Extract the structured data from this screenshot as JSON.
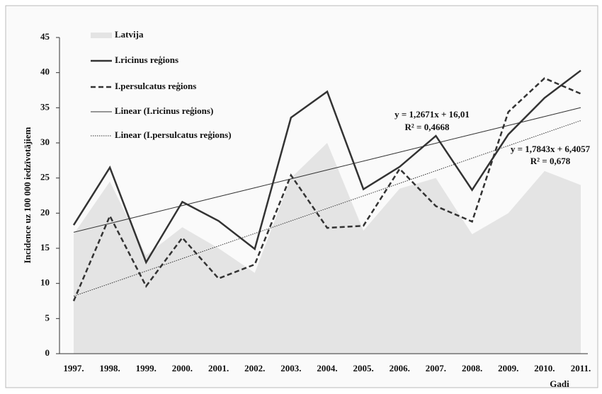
{
  "chart_data": {
    "type": "line",
    "y_label": "Incidence uz 100 000 iedzīvotājiem",
    "x_label": "Gadi",
    "categories": [
      "1997.",
      "1998.",
      "1999.",
      "2000.",
      "2001.",
      "2002.",
      "2003.",
      "2004.",
      "2005.",
      "2006.",
      "2007.",
      "2008.",
      "2009.",
      "2010.",
      "2011."
    ],
    "series": [
      {
        "name": "Latvija",
        "color": "#e4e4e4",
        "style": "area",
        "values": [
          17,
          24.5,
          14,
          18,
          15,
          11.5,
          25,
          30,
          17.5,
          23.5,
          25,
          17,
          20,
          26,
          24
        ]
      },
      {
        "name": "I.ricinus reģions",
        "color": "#333333",
        "style": "solid",
        "values": [
          18.3,
          26.5,
          13,
          21.6,
          18.9,
          14.9,
          33.6,
          37.3,
          23.4,
          26.6,
          31,
          23.3,
          31.2,
          36.4,
          40.3
        ]
      },
      {
        "name": "I.persulcatus reģions",
        "color": "#333333",
        "style": "dashed",
        "values": [
          7.5,
          19.6,
          9.6,
          16.5,
          10.7,
          12.7,
          25.4,
          17.9,
          18.2,
          26.3,
          21,
          18.8,
          34.4,
          39.2,
          37
        ]
      },
      {
        "name": "Linear (I.ricinus reģions)",
        "color": "#333333",
        "style": "thin",
        "values": [
          17.28,
          18.54,
          19.81,
          21.08,
          22.35,
          23.61,
          24.88,
          26.15,
          27.41,
          28.68,
          29.95,
          31.22,
          32.48,
          33.75,
          35.02
        ]
      },
      {
        "name": "Linear (I.persulcatus reģions)",
        "color": "#333333",
        "style": "dotted",
        "values": [
          8.19,
          9.97,
          11.76,
          13.54,
          15.33,
          17.11,
          18.9,
          20.68,
          22.46,
          24.25,
          26.03,
          27.82,
          29.6,
          31.39,
          33.17
        ]
      }
    ],
    "annotations": [
      "y = 1,2671x + 16,01",
      "R² = 0,4668",
      "y = 1,7843x + 6,4057",
      "R² = 0,678"
    ],
    "ylim": [
      0,
      45
    ],
    "yticks": [
      0,
      5,
      10,
      15,
      20,
      25,
      30,
      35,
      40,
      45
    ]
  }
}
